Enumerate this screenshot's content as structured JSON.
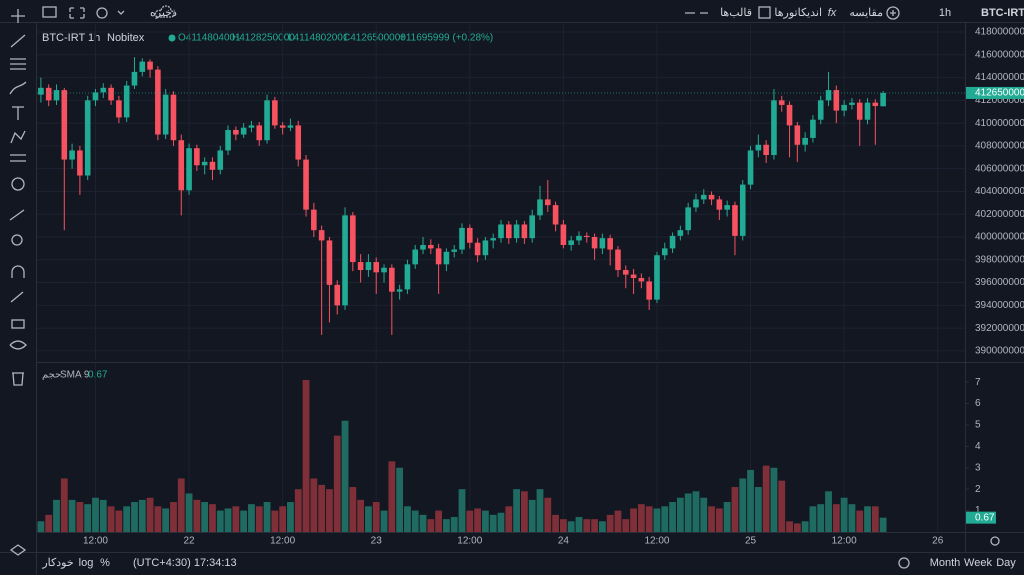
{
  "toolbar": {
    "symbol": "BTC-IRT",
    "interval": "1h",
    "compare": "مقایسه",
    "indicators": "اندیکاتورها",
    "templates": "قالب‌ها",
    "save": "ذخیره"
  },
  "legend": {
    "symbol": "BTC-IRT",
    "interval": "1h",
    "exchange": "Nobitex",
    "open": "O4114804001",
    "high": "H4128250000",
    "low": "L4114802001",
    "close": "C4126500000",
    "change": "+11695999 (+0.28%)"
  },
  "volume_legend": {
    "name": "حجم",
    "sma": "SMA 9"
  },
  "bottom_bar": {
    "ranges": [
      "Month",
      "Week",
      "Day"
    ],
    "timezone": "(UTC+4:30) 17:34:13",
    "log": "log",
    "percent": "%",
    "auto": "خودکار"
  },
  "chart_data": [
    {
      "type": "candlestick",
      "colors": {
        "up": "#22ab94",
        "down": "#f7525f"
      },
      "grid": true,
      "xlim": [
        -0.5,
        118.5
      ],
      "ylim": [
        3892000000,
        4188800000
      ],
      "yticks": [
        3900000000,
        3920000000,
        3940000000,
        3960000000,
        3980000000,
        4000000000,
        4020000000,
        4040000000,
        4060000000,
        4080000000,
        4100000000,
        4120000000,
        4140000000,
        4160000000,
        4180000000
      ],
      "xticks": [
        {
          "value": 7,
          "label": "12:00"
        },
        {
          "value": 19,
          "label": "22"
        },
        {
          "value": 31,
          "label": "12:00"
        },
        {
          "value": 43,
          "label": "23"
        },
        {
          "value": 55,
          "label": "12:00"
        },
        {
          "value": 67,
          "label": "24"
        },
        {
          "value": 79,
          "label": "12:00"
        },
        {
          "value": 91,
          "label": "25"
        },
        {
          "value": 103,
          "label": "12:00"
        },
        {
          "value": 115,
          "label": "26"
        }
      ],
      "ohlc": [
        [
          4125000000.0,
          4140000000.0,
          4118000000.0,
          4131000000.0
        ],
        [
          4131000000.0,
          4134000000.0,
          4115000000.0,
          4120000000.0
        ],
        [
          4120000000.0,
          4134000000.0,
          4116000000.0,
          4129000000.0
        ],
        [
          4129000000.0,
          4131000000.0,
          4006000000.0,
          4068000000.0
        ],
        [
          4068000000.0,
          4082000000.0,
          4060000000.0,
          4076000000.0
        ],
        [
          4076000000.0,
          4080000000.0,
          4037000000.0,
          4054000000.0
        ],
        [
          4054000000.0,
          4124000000.0,
          4050000000.0,
          4120000000.0
        ],
        [
          4120000000.0,
          4130000000.0,
          4115000000.0,
          4127000000.0
        ],
        [
          4127000000.0,
          4135000000.0,
          4122000000.0,
          4131000000.0
        ],
        [
          4131000000.0,
          4134000000.0,
          4116000000.0,
          4120000000.0
        ],
        [
          4120000000.0,
          4124000000.0,
          4100000000.0,
          4105000000.0
        ],
        [
          4105000000.0,
          4137000000.0,
          4101000000.0,
          4133000000.0
        ],
        [
          4133000000.0,
          4158000000.0,
          4130000000.0,
          4145000000.0
        ],
        [
          4145000000.0,
          4157000000.0,
          4141000000.0,
          4154000000.0
        ],
        [
          4154000000.0,
          4156000000.0,
          4140000000.0,
          4147000000.0
        ],
        [
          4147000000.0,
          4150000000.0,
          4085000000.0,
          4090000000.0
        ],
        [
          4090000000.0,
          4130000000.0,
          4086000000.0,
          4125000000.0
        ],
        [
          4125000000.0,
          4128000000.0,
          4080000000.0,
          4085000000.0
        ],
        [
          4085000000.0,
          4090000000.0,
          4019000000.0,
          4041000000.0
        ],
        [
          4041000000.0,
          4082000000.0,
          4037000000.0,
          4078000000.0
        ],
        [
          4078000000.0,
          4081000000.0,
          4058000000.0,
          4063000000.0
        ],
        [
          4063000000.0,
          4070000000.0,
          4055000000.0,
          4066000000.0
        ],
        [
          4066000000.0,
          4070000000.0,
          4050000000.0,
          4059000000.0
        ],
        [
          4059000000.0,
          4080000000.0,
          4055000000.0,
          4076000000.0
        ],
        [
          4076000000.0,
          4098000000.0,
          4072000000.0,
          4094000000.0
        ],
        [
          4094000000.0,
          4097000000.0,
          4085000000.0,
          4090000000.0
        ],
        [
          4090000000.0,
          4100000000.0,
          4087000000.0,
          4096000000.0
        ],
        [
          4096000000.0,
          4102000000.0,
          4092000000.0,
          4098000000.0
        ],
        [
          4098000000.0,
          4101000000.0,
          4080000000.0,
          4085000000.0
        ],
        [
          4085000000.0,
          4125000000.0,
          4082000000.0,
          4120000000.0
        ],
        [
          4120000000.0,
          4123000000.0,
          4095000000.0,
          4098000000.0
        ],
        [
          4098000000.0,
          4101000000.0,
          4090000000.0,
          4096000000.0
        ],
        [
          4096000000.0,
          4104000000.0,
          4093000000.0,
          4098000000.0
        ],
        [
          4098000000.0,
          4102000000.0,
          4062000000.0,
          4068000000.0
        ],
        [
          4068000000.0,
          4072000000.0,
          4018000000.0,
          4024000000.0
        ],
        [
          4024000000.0,
          4030000000.0,
          4000000000.0,
          4006000000.0
        ],
        [
          4006000000.0,
          4010000000.0,
          3914000000.0,
          3997000000.0
        ],
        [
          3997000000.0,
          4000000000.0,
          3925000000.0,
          3958000000.0
        ],
        [
          3958000000.0,
          3962000000.0,
          3932000000.0,
          3940000000.0
        ],
        [
          3940000000.0,
          4026000000.0,
          3936000000.0,
          4019000000.0
        ],
        [
          4019000000.0,
          4022000000.0,
          3970000000.0,
          3978000000.0
        ],
        [
          3978000000.0,
          3985000000.0,
          3960000000.0,
          3971000000.0
        ],
        [
          3971000000.0,
          3985000000.0,
          3965000000.0,
          3978000000.0
        ],
        [
          3978000000.0,
          3982000000.0,
          3950000000.0,
          3969000000.0
        ],
        [
          3969000000.0,
          3976000000.0,
          3960000000.0,
          3973000000.0
        ],
        [
          3973000000.0,
          3976000000.0,
          3914000000.0,
          3952000000.0
        ],
        [
          3952000000.0,
          3958000000.0,
          3945000000.0,
          3954000000.0
        ],
        [
          3954000000.0,
          3980000000.0,
          3950000000.0,
          3976000000.0
        ],
        [
          3976000000.0,
          3993000000.0,
          3972000000.0,
          3989000000.0
        ],
        [
          3989000000.0,
          4000000000.0,
          3985000000.0,
          3993000000.0
        ],
        [
          3993000000.0,
          3998000000.0,
          3985000000.0,
          3990000000.0
        ],
        [
          3990000000.0,
          3994000000.0,
          3950000000.0,
          3976000000.0
        ],
        [
          3976000000.0,
          3990000000.0,
          3970000000.0,
          3987000000.0
        ],
        [
          3987000000.0,
          3993000000.0,
          3982000000.0,
          3989000000.0
        ],
        [
          3989000000.0,
          4012000000.0,
          3985000000.0,
          4008000000.0
        ],
        [
          4008000000.0,
          4011000000.0,
          3990000000.0,
          3995000000.0
        ],
        [
          3995000000.0,
          3999000000.0,
          3978000000.0,
          3984000000.0
        ],
        [
          3984000000.0,
          4000000000.0,
          3980000000.0,
          3997000000.0
        ],
        [
          3997000000.0,
          4003000000.0,
          3990000000.0,
          3999000000.0
        ],
        [
          3999000000.0,
          4015000000.0,
          3995000000.0,
          4011000000.0
        ],
        [
          4011000000.0,
          4014000000.0,
          3994000000.0,
          3999000000.0
        ],
        [
          3999000000.0,
          4015000000.0,
          3995000000.0,
          4011000000.0
        ],
        [
          4011000000.0,
          4014000000.0,
          3994000000.0,
          3999000000.0
        ],
        [
          3999000000.0,
          4024000000.0,
          3995000000.0,
          4019000000.0
        ],
        [
          4019000000.0,
          4045000000.0,
          4015000000.0,
          4033000000.0
        ],
        [
          4033000000.0,
          4050000000.0,
          4022000000.0,
          4028000000.0
        ],
        [
          4028000000.0,
          4031000000.0,
          4005000000.0,
          4011000000.0
        ],
        [
          4011000000.0,
          4015000000.0,
          3990000000.0,
          3993000000.0
        ],
        [
          3993000000.0,
          4001000000.0,
          3988000000.0,
          3997000000.0
        ],
        [
          3997000000.0,
          4005000000.0,
          3993000000.0,
          4001000000.0
        ],
        [
          4001000000.0,
          4004000000.0,
          3995000000.0,
          4000000000.0
        ],
        [
          4000000000.0,
          4003000000.0,
          3980000000.0,
          3990000000.0
        ],
        [
          3990000000.0,
          4003000000.0,
          3985000000.0,
          3999000000.0
        ],
        [
          3999000000.0,
          4002000000.0,
          3975000000.0,
          3989000000.0
        ],
        [
          3989000000.0,
          3992000000.0,
          3965000000.0,
          3971000000.0
        ],
        [
          3971000000.0,
          3975000000.0,
          3955000000.0,
          3967000000.0
        ],
        [
          3967000000.0,
          3972000000.0,
          3950000000.0,
          3964000000.0
        ],
        [
          3964000000.0,
          3968000000.0,
          3955000000.0,
          3961000000.0
        ],
        [
          3961000000.0,
          3965000000.0,
          3936000000.0,
          3945000000.0
        ],
        [
          3945000000.0,
          3987000000.0,
          3942000000.0,
          3984000000.0
        ],
        [
          3984000000.0,
          3995000000.0,
          3980000000.0,
          3990000000.0
        ],
        [
          3990000000.0,
          4004000000.0,
          3986000000.0,
          4001000000.0
        ],
        [
          4001000000.0,
          4010000000.0,
          3997000000.0,
          4006000000.0
        ],
        [
          4006000000.0,
          4030000000.0,
          4002000000.0,
          4026000000.0
        ],
        [
          4026000000.0,
          4038000000.0,
          4022000000.0,
          4033000000.0
        ],
        [
          4033000000.0,
          4042000000.0,
          4029000000.0,
          4037000000.0
        ],
        [
          4037000000.0,
          4040000000.0,
          4028000000.0,
          4033000000.0
        ],
        [
          4033000000.0,
          4036000000.0,
          4015000000.0,
          4024000000.0
        ],
        [
          4024000000.0,
          4032000000.0,
          4018000000.0,
          4028000000.0
        ],
        [
          4028000000.0,
          4031000000.0,
          3984000000.0,
          4001000000.0
        ],
        [
          4001000000.0,
          4050000000.0,
          3997000000.0,
          4046000000.0
        ],
        [
          4046000000.0,
          4080000000.0,
          4042000000.0,
          4076000000.0
        ],
        [
          4076000000.0,
          4090000000.0,
          4070000000.0,
          4081000000.0
        ],
        [
          4081000000.0,
          4085000000.0,
          4065000000.0,
          4072000000.0
        ],
        [
          4072000000.0,
          4130000000.0,
          4068000000.0,
          4120000000.0
        ],
        [
          4120000000.0,
          4124000000.0,
          4110000000.0,
          4116000000.0
        ],
        [
          4116000000.0,
          4119000000.0,
          4070000000.0,
          4098000000.0
        ],
        [
          4098000000.0,
          4101000000.0,
          4066000000.0,
          4081000000.0
        ],
        [
          4081000000.0,
          4092000000.0,
          4075000000.0,
          4087000000.0
        ],
        [
          4087000000.0,
          4107000000.0,
          4083000000.0,
          4103000000.0
        ],
        [
          4103000000.0,
          4124000000.0,
          4099000000.0,
          4120000000.0
        ],
        [
          4120000000.0,
          4145000000.0,
          4115000000.0,
          4129000000.0
        ],
        [
          4129000000.0,
          4133000000.0,
          4100000000.0,
          4111000000.0
        ],
        [
          4111000000.0,
          4120000000.0,
          4106000000.0,
          4116000000.0
        ],
        [
          4116000000.0,
          4122000000.0,
          4112000000.0,
          4118000000.0
        ],
        [
          4118000000.0,
          4121000000.0,
          4080000000.0,
          4103000000.0
        ],
        [
          4103000000.0,
          4122000000.0,
          4099000000.0,
          4118000000.0
        ],
        [
          4118000000.0,
          4121000000.0,
          4081000000.0,
          4115000000.0
        ],
        [
          4114804001,
          4128250000,
          4114802001,
          4126500000
        ]
      ]
    },
    {
      "type": "bar",
      "colors": {
        "up": "#1f6b62",
        "down": "#7e2f37"
      },
      "ylim": [
        0,
        7.8
      ],
      "yticks": [
        1,
        2,
        3,
        4,
        5,
        6,
        7
      ],
      "values": [
        0.5,
        0.8,
        1.5,
        2.5,
        1.5,
        1.4,
        1.3,
        1.6,
        1.5,
        1.2,
        1,
        1.2,
        1.4,
        1.5,
        1.6,
        1.2,
        1.1,
        1.4,
        2.5,
        1.8,
        1.5,
        1.4,
        1.3,
        1,
        1.1,
        1.2,
        1,
        1.3,
        1.2,
        1.4,
        1,
        1.2,
        1.4,
        2,
        7.1,
        2.5,
        2.2,
        2,
        4.5,
        5.2,
        2.1,
        1.5,
        1.2,
        1.4,
        1,
        3.3,
        3,
        1.2,
        1,
        0.8,
        0.6,
        1,
        0.6,
        0.7,
        2,
        1,
        1.1,
        1,
        0.8,
        0.9,
        1.2,
        2,
        1.9,
        1.5,
        2,
        1.6,
        0.8,
        0.6,
        0.5,
        0.7,
        0.6,
        0.6,
        0.5,
        0.8,
        1,
        0.6,
        1.1,
        1.3,
        1.2,
        1.1,
        1.2,
        1.4,
        1.6,
        1.8,
        1.9,
        1.6,
        1.2,
        1.1,
        1.4,
        2.1,
        2.5,
        2.9,
        2.1,
        3.1,
        3,
        2.4,
        0.5,
        0.4,
        0.5,
        1.2,
        1.3,
        1.9,
        1.3,
        1.6,
        1.3,
        1,
        1.2,
        1.2,
        0.67
      ]
    }
  ]
}
